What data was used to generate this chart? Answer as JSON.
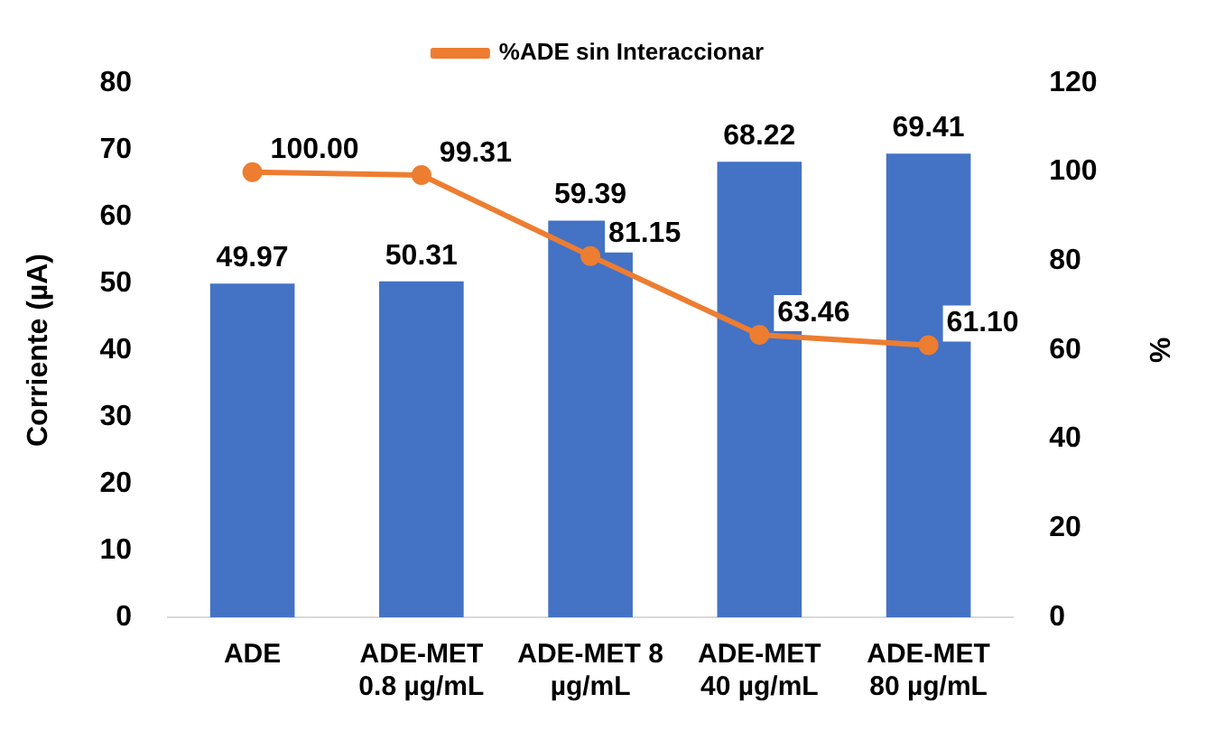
{
  "chart_data": {
    "type": "bar",
    "ylabel": "Corriente (µA)",
    "y2label": "%",
    "categories": [
      "ADE",
      "ADE-MET 0.8 µg/mL",
      "ADE-MET 8 µg/mL",
      "ADE-MET 40 µg/mL",
      "ADE-MET 80 µg/mL"
    ],
    "series": [
      {
        "color": "#4472c4",
        "values": [
          49.97,
          50.31,
          59.39,
          68.22,
          69.41
        ],
        "value_labels": [
          "49.97",
          "50.31",
          "59.39",
          "68.22",
          "69.41"
        ]
      },
      {
        "type": "line",
        "name": "%ADE sin Interaccionar",
        "color": "#ed7d31",
        "axis": "y2",
        "marker": "circle",
        "values": [
          100.0,
          99.31,
          81.15,
          63.46,
          61.1
        ],
        "value_labels": [
          "100.00",
          "99.31",
          "81.15",
          "63.46",
          "61.10"
        ]
      }
    ],
    "ylim": [
      0,
      80
    ],
    "yticks": [
      0,
      10,
      20,
      30,
      40,
      50,
      60,
      70,
      80
    ],
    "y2lim": [
      0,
      120
    ],
    "y2ticks": [
      0,
      20,
      40,
      60,
      80,
      100,
      120
    ],
    "grid": false,
    "legend": "top"
  }
}
